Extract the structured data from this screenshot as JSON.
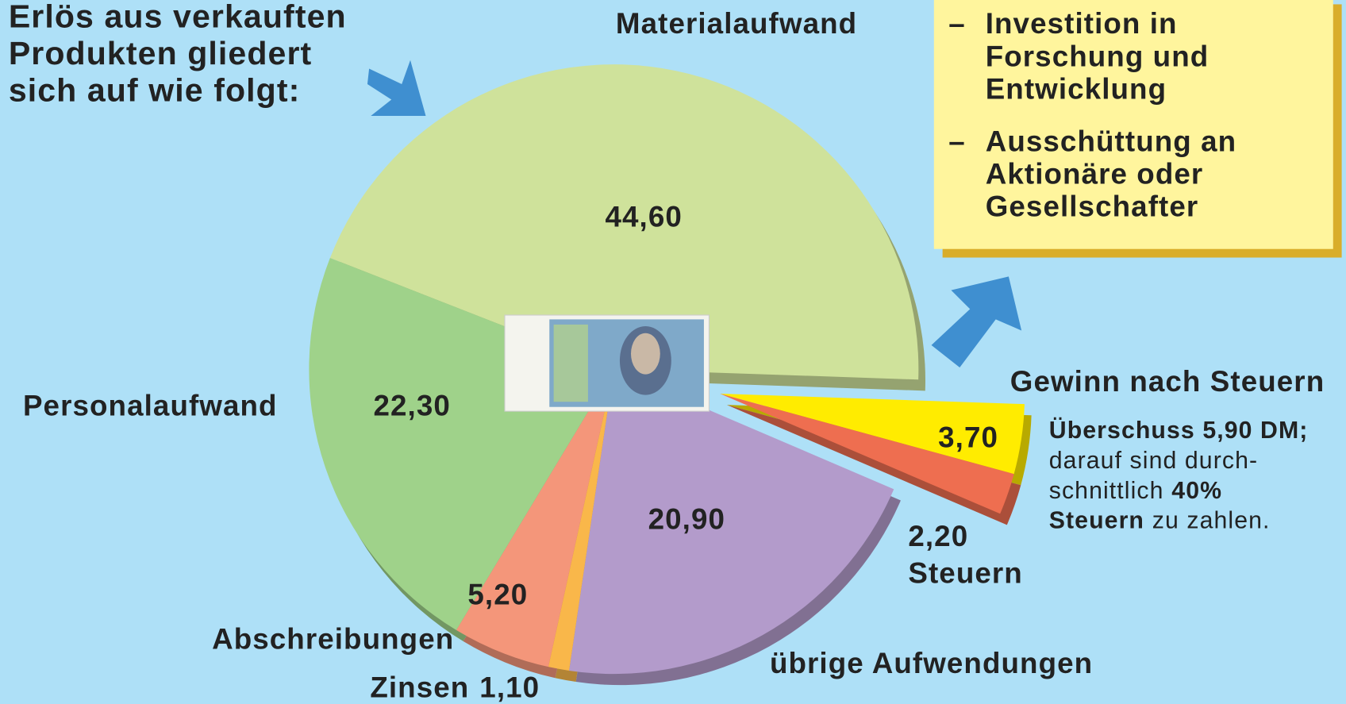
{
  "chart_data": {
    "type": "pie",
    "title": [
      "Erlös aus verkauften",
      "Produkten gliedert",
      "sich auf wie folgt:"
    ],
    "categories": [
      "Materialaufwand",
      "Gewinn nach Steuern",
      "Steuern",
      "übrige Aufwendungen",
      "Zinsen",
      "Abschreibungen",
      "Personalaufwand"
    ],
    "values": [
      44.6,
      3.7,
      2.2,
      20.9,
      1.1,
      5.2,
      22.3
    ],
    "value_labels": [
      "44,60",
      "3,70",
      "2,20",
      "20,90",
      "1,10",
      "5,20",
      "22,30"
    ],
    "colors": [
      "#cfe29b",
      "#ffec00",
      "#ee6e50",
      "#b39bcb",
      "#f9b74a",
      "#f4967a",
      "#9fd28a"
    ],
    "exploded": [
      false,
      true,
      true,
      false,
      false,
      false,
      false
    ]
  },
  "usage_box": {
    "bullet": "–",
    "items": [
      [
        "Investition in",
        "Forschung und",
        "Entwicklung"
      ],
      [
        "Ausschüttung an",
        "Aktionäre oder",
        "Gesellschafter"
      ]
    ]
  },
  "note": [
    [
      {
        "text": "Überschuss 5,90 DM;",
        "bold": true
      }
    ],
    [
      {
        "text": "darauf sind durch-",
        "bold": false
      }
    ],
    [
      {
        "text": "schnittlich",
        "bold": false
      },
      {
        "text": "40%",
        "bold": true
      }
    ],
    [
      {
        "text": "Steuern",
        "bold": true
      },
      {
        "text": "zu zahlen.",
        "bold": false
      }
    ]
  ]
}
